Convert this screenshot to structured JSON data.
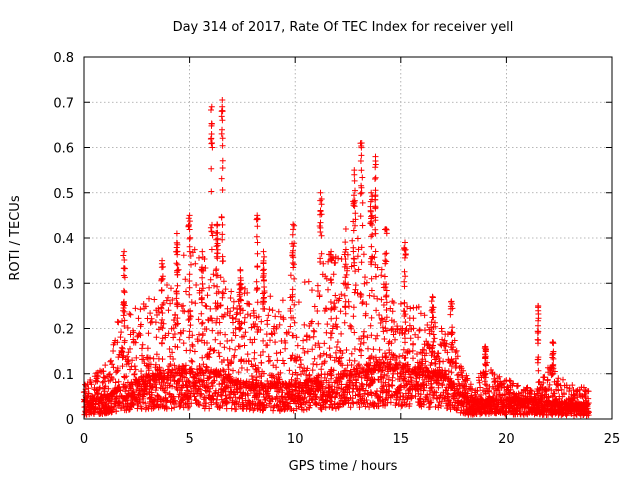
{
  "chart_data": {
    "type": "scatter",
    "title": "Day 314 of 2017, Rate Of TEC Index for receiver yell",
    "xlabel": "GPS time / hours",
    "ylabel": "ROTI / TECUs",
    "xlim": [
      0,
      25
    ],
    "ylim": [
      0,
      0.8
    ],
    "x_ticks": [
      0,
      5,
      10,
      15,
      20,
      25
    ],
    "y_ticks": [
      0,
      0.1,
      0.2,
      0.3,
      0.4,
      0.5,
      0.6,
      0.7,
      0.8
    ],
    "x_tick_labels": [
      "0",
      "5",
      "10",
      "15",
      "20",
      "25"
    ],
    "y_tick_labels": [
      "0",
      "0.1",
      "0.2",
      "0.3",
      "0.4",
      "0.5",
      "0.6",
      "0.7",
      "0.8"
    ],
    "grid": true,
    "marker": "+",
    "color": "#ff0000",
    "series": [
      {
        "name": "ROTI",
        "x_range": [
          0,
          23.9
        ],
        "step_hours": 0.025,
        "baseline_profile": [
          [
            0.0,
            0.035
          ],
          [
            1.0,
            0.045
          ],
          [
            2.0,
            0.07
          ],
          [
            3.0,
            0.085
          ],
          [
            4.0,
            0.09
          ],
          [
            5.0,
            0.1
          ],
          [
            6.0,
            0.09
          ],
          [
            6.5,
            0.1
          ],
          [
            7.0,
            0.08
          ],
          [
            8.0,
            0.07
          ],
          [
            9.0,
            0.07
          ],
          [
            10.0,
            0.07
          ],
          [
            11.0,
            0.08
          ],
          [
            12.0,
            0.09
          ],
          [
            13.0,
            0.1
          ],
          [
            14.0,
            0.11
          ],
          [
            15.0,
            0.11
          ],
          [
            16.0,
            0.1
          ],
          [
            17.0,
            0.09
          ],
          [
            17.7,
            0.06
          ],
          [
            18.2,
            0.035
          ],
          [
            19.0,
            0.04
          ],
          [
            20.0,
            0.04
          ],
          [
            21.0,
            0.035
          ],
          [
            22.0,
            0.035
          ],
          [
            23.0,
            0.03
          ],
          [
            23.9,
            0.03
          ]
        ],
        "envelope_profile": [
          [
            0.0,
            0.08
          ],
          [
            0.5,
            0.1
          ],
          [
            1.0,
            0.12
          ],
          [
            1.5,
            0.2
          ],
          [
            2.0,
            0.3
          ],
          [
            2.5,
            0.24
          ],
          [
            3.0,
            0.3
          ],
          [
            3.5,
            0.26
          ],
          [
            4.0,
            0.32
          ],
          [
            4.5,
            0.35
          ],
          [
            5.0,
            0.4
          ],
          [
            5.5,
            0.36
          ],
          [
            6.0,
            0.35
          ],
          [
            6.5,
            0.38
          ],
          [
            7.0,
            0.28
          ],
          [
            7.5,
            0.3
          ],
          [
            8.0,
            0.26
          ],
          [
            8.5,
            0.3
          ],
          [
            9.0,
            0.26
          ],
          [
            9.5,
            0.3
          ],
          [
            10.0,
            0.34
          ],
          [
            10.5,
            0.3
          ],
          [
            11.0,
            0.32
          ],
          [
            11.5,
            0.36
          ],
          [
            12.0,
            0.38
          ],
          [
            12.5,
            0.42
          ],
          [
            13.0,
            0.45
          ],
          [
            13.5,
            0.4
          ],
          [
            14.0,
            0.34
          ],
          [
            14.5,
            0.3
          ],
          [
            15.0,
            0.3
          ],
          [
            15.5,
            0.25
          ],
          [
            16.0,
            0.25
          ],
          [
            16.5,
            0.22
          ],
          [
            17.0,
            0.2
          ],
          [
            17.5,
            0.22
          ],
          [
            17.8,
            0.12
          ],
          [
            18.5,
            0.07
          ],
          [
            19.0,
            0.13
          ],
          [
            19.5,
            0.1
          ],
          [
            20.0,
            0.09
          ],
          [
            20.5,
            0.08
          ],
          [
            21.0,
            0.07
          ],
          [
            21.5,
            0.08
          ],
          [
            22.0,
            0.12
          ],
          [
            22.5,
            0.1
          ],
          [
            23.0,
            0.08
          ],
          [
            23.9,
            0.07
          ]
        ],
        "spikes": [
          {
            "x": 1.9,
            "peak": 0.37,
            "width": 0.08
          },
          {
            "x": 3.7,
            "peak": 0.35,
            "width": 0.1
          },
          {
            "x": 4.4,
            "peak": 0.41,
            "width": 0.08
          },
          {
            "x": 5.0,
            "peak": 0.45,
            "width": 0.12
          },
          {
            "x": 5.6,
            "peak": 0.37,
            "width": 0.1
          },
          {
            "x": 6.05,
            "peak": 0.69,
            "width": 0.08
          },
          {
            "x": 6.3,
            "peak": 0.43,
            "width": 0.08
          },
          {
            "x": 6.55,
            "peak": 0.705,
            "width": 0.08
          },
          {
            "x": 7.4,
            "peak": 0.33,
            "width": 0.1
          },
          {
            "x": 8.2,
            "peak": 0.45,
            "width": 0.06
          },
          {
            "x": 8.5,
            "peak": 0.37,
            "width": 0.06
          },
          {
            "x": 9.9,
            "peak": 0.43,
            "width": 0.1
          },
          {
            "x": 11.2,
            "peak": 0.5,
            "width": 0.12
          },
          {
            "x": 11.7,
            "peak": 0.37,
            "width": 0.1
          },
          {
            "x": 12.4,
            "peak": 0.42,
            "width": 0.12
          },
          {
            "x": 12.8,
            "peak": 0.55,
            "width": 0.12
          },
          {
            "x": 13.15,
            "peak": 0.61,
            "width": 0.12
          },
          {
            "x": 13.6,
            "peak": 0.5,
            "width": 0.1
          },
          {
            "x": 13.8,
            "peak": 0.58,
            "width": 0.06
          },
          {
            "x": 14.3,
            "peak": 0.42,
            "width": 0.1
          },
          {
            "x": 15.2,
            "peak": 0.39,
            "width": 0.08
          },
          {
            "x": 16.5,
            "peak": 0.27,
            "width": 0.1
          },
          {
            "x": 17.4,
            "peak": 0.26,
            "width": 0.1
          },
          {
            "x": 19.0,
            "peak": 0.16,
            "width": 0.06
          },
          {
            "x": 21.5,
            "peak": 0.25,
            "width": 0.04
          },
          {
            "x": 22.2,
            "peak": 0.17,
            "width": 0.06
          }
        ]
      }
    ]
  }
}
